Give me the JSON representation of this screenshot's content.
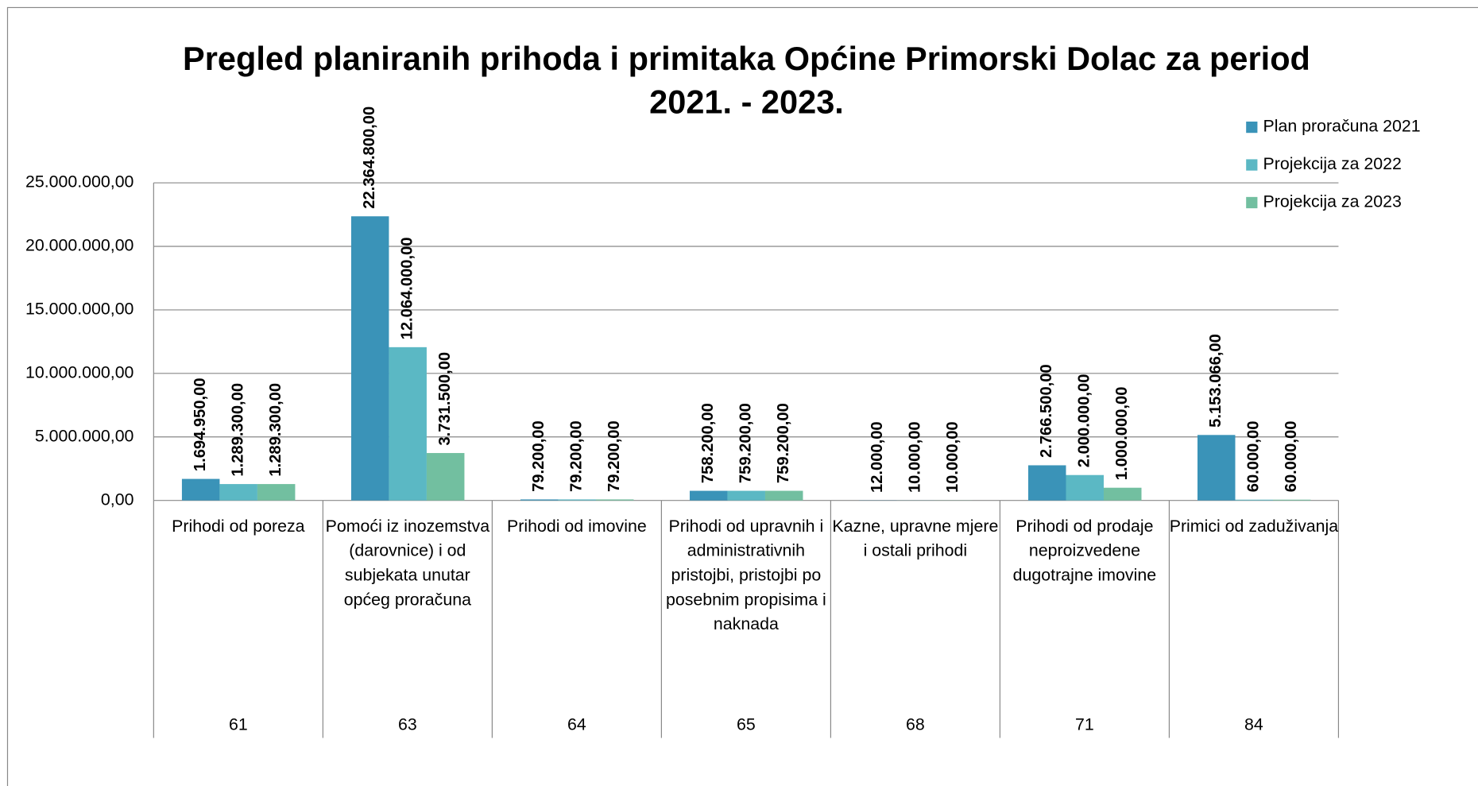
{
  "chart_data": {
    "type": "bar",
    "title": "Pregled planiranih prihoda i primitaka Općine Primorski Dolac za period 2021. - 2023.",
    "categories": [
      "Prihodi od poreza",
      "Pomoći iz inozemstva (darovnice) i od subjekata unutar općeg proračuna",
      "Prihodi od imovine",
      "Prihodi od upravnih i administrativnih pristojbi, pristojbi po posebnim propisima i naknada",
      "Kazne, upravne mjere i ostali prihodi",
      "Prihodi od prodaje neproizvedene dugotrajne imovine",
      "Primici od zaduživanja"
    ],
    "category_codes": [
      "61",
      "63",
      "64",
      "65",
      "68",
      "71",
      "84"
    ],
    "series": [
      {
        "name": "Plan proračuna 2021",
        "color": "#3a93b8",
        "values": [
          1694950,
          22364800,
          79200,
          758200,
          12000,
          2766500,
          5153066
        ],
        "value_labels": [
          "1.694.950,00",
          "22.364.800,00",
          "79.200,00",
          "758.200,00",
          "12.000,00",
          "2.766.500,00",
          "5.153.066,00"
        ]
      },
      {
        "name": "Projekcija za 2022",
        "color": "#5bb8c4",
        "values": [
          1289300,
          12064000,
          79200,
          759200,
          10000,
          2000000,
          60000
        ],
        "value_labels": [
          "1.289.300,00",
          "12.064.000,00",
          "79.200,00",
          "759.200,00",
          "10.000,00",
          "2.000.000,00",
          "60.000,00"
        ]
      },
      {
        "name": "Projekcija za 2023",
        "color": "#72bfa0",
        "values": [
          1289300,
          3731500,
          79200,
          759200,
          10000,
          1000000,
          60000
        ],
        "value_labels": [
          "1.289.300,00",
          "3.731.500,00",
          "79.200,00",
          "759.200,00",
          "10.000,00",
          "1.000.000,00",
          "60.000,00"
        ]
      }
    ],
    "ylim": [
      0,
      25000000
    ],
    "yticks": [
      {
        "value": 0,
        "label": "0,00"
      },
      {
        "value": 5000000,
        "label": "5.000.000,00"
      },
      {
        "value": 10000000,
        "label": "10.000.000,00"
      },
      {
        "value": 15000000,
        "label": "15.000.000,00"
      },
      {
        "value": 20000000,
        "label": "20.000.000,00"
      },
      {
        "value": 25000000,
        "label": "25.000.000,00"
      }
    ],
    "grid": true,
    "legend": "right"
  }
}
